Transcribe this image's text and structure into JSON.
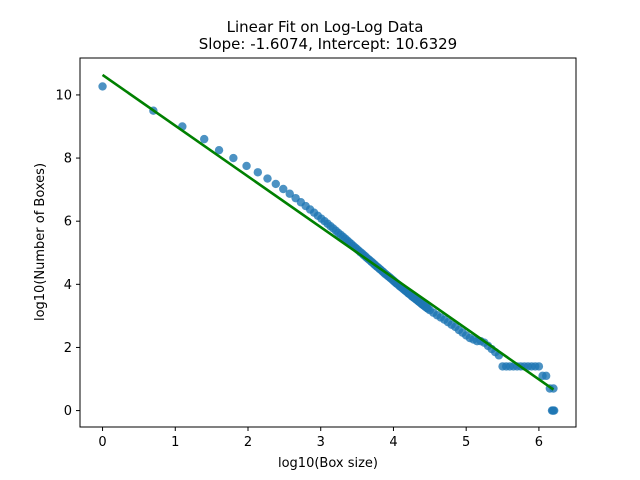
{
  "chart_data": {
    "type": "scatter",
    "title": "Linear Fit on Log-Log Data",
    "subtitle": "Slope: -1.6074, Intercept: 10.6329",
    "xlabel": "log10(Box size)",
    "ylabel": "log10(Number of Boxes)",
    "xlim": [
      -0.31,
      6.51
    ],
    "ylim": [
      -0.52,
      11.17
    ],
    "xticks": [
      "0",
      "1",
      "2",
      "3",
      "4",
      "5",
      "6"
    ],
    "yticks": [
      "0",
      "2",
      "4",
      "6",
      "8",
      "10"
    ],
    "grid": false,
    "legend": "none",
    "colors": {
      "points": "#1f77b4",
      "fit": "#008000"
    },
    "series": [
      {
        "kind": "scatter",
        "x": [
          0,
          0.699,
          1.097,
          1.398,
          1.602,
          1.799,
          1.98,
          2.135,
          2.268,
          2.382,
          2.485,
          2.574,
          2.655,
          2.727,
          2.793,
          2.854,
          2.909,
          2.961,
          3.009,
          3.053,
          3.095,
          3.135,
          3.172,
          3.208,
          3.241,
          3.274,
          3.306,
          3.336,
          3.365,
          3.393,
          3.42,
          3.447,
          3.472,
          3.497,
          3.521,
          3.545,
          3.568,
          3.59,
          3.612,
          3.633,
          3.654,
          3.675,
          3.695,
          3.715,
          3.734,
          3.753,
          3.772,
          3.79,
          3.808,
          3.826,
          3.843,
          3.86,
          3.877,
          3.893,
          3.91,
          3.926,
          3.942,
          3.957,
          3.973,
          3.988,
          4.003,
          4.017,
          4.032,
          4.046,
          4.06,
          4.074,
          4.088,
          4.101,
          4.115,
          4.128,
          4.141,
          4.153,
          4.166,
          4.179,
          4.191,
          4.203,
          4.215,
          4.227,
          4.239,
          4.251,
          4.262,
          4.274,
          4.285,
          4.297,
          4.308,
          4.319,
          4.33,
          4.34,
          4.351,
          4.362,
          4.372,
          4.383,
          4.393,
          4.403,
          4.413,
          4.423,
          4.433,
          4.443,
          4.453,
          4.463,
          4.473,
          4.5,
          4.55,
          4.6,
          4.65,
          4.7,
          4.75,
          4.8,
          4.85,
          4.9,
          4.95,
          5.0,
          5.05,
          5.1,
          5.15,
          5.2,
          5.25,
          5.3,
          5.35,
          5.4,
          5.45,
          5.5,
          5.55,
          5.6,
          5.65,
          5.7,
          5.75,
          5.8,
          5.85,
          5.9,
          5.95,
          6.0,
          6.05,
          6.1,
          6.15,
          6.2
        ],
        "y": [
          10.27,
          9.5,
          9.0,
          8.6,
          8.25,
          8.0,
          7.75,
          7.55,
          7.35,
          7.18,
          7.02,
          6.87,
          6.73,
          6.6,
          6.48,
          6.37,
          6.27,
          6.17,
          6.08,
          6.0,
          5.92,
          5.84,
          5.77,
          5.7,
          5.63,
          5.57,
          5.51,
          5.45,
          5.39,
          5.33,
          5.28,
          5.22,
          5.17,
          5.12,
          5.07,
          5.02,
          4.98,
          4.93,
          4.89,
          4.84,
          4.8,
          4.76,
          4.72,
          4.68,
          4.64,
          4.6,
          4.56,
          4.53,
          4.49,
          4.46,
          4.42,
          4.39,
          4.35,
          4.32,
          4.29,
          4.26,
          4.23,
          4.2,
          4.17,
          4.14,
          4.11,
          4.08,
          4.05,
          4.02,
          4.0,
          3.97,
          3.94,
          3.92,
          3.89,
          3.87,
          3.84,
          3.82,
          3.79,
          3.77,
          3.75,
          3.72,
          3.7,
          3.68,
          3.66,
          3.63,
          3.61,
          3.59,
          3.57,
          3.55,
          3.53,
          3.51,
          3.49,
          3.47,
          3.45,
          3.43,
          3.41,
          3.39,
          3.37,
          3.35,
          3.34,
          3.32,
          3.3,
          3.28,
          3.27,
          3.25,
          3.23,
          3.18,
          3.1,
          3.02,
          2.95,
          2.88,
          2.8,
          2.72,
          2.65,
          2.55,
          2.47,
          2.38,
          2.3,
          2.25,
          2.2,
          2.2,
          2.15,
          2.05,
          1.95,
          1.85,
          1.75,
          1.4,
          1.4,
          1.4,
          1.4,
          1.4,
          1.4,
          1.4,
          1.4,
          1.4,
          1.4,
          1.4,
          1.1,
          1.1,
          0.7,
          0.7
        ]
      },
      {
        "kind": "scatter",
        "x": [
          6.18,
          6.19,
          6.2,
          6.21
        ],
        "y": [
          0,
          0,
          0,
          0
        ]
      },
      {
        "kind": "line",
        "x": [
          0,
          6.2
        ],
        "y": [
          10.6329,
          0.667
        ]
      }
    ]
  }
}
